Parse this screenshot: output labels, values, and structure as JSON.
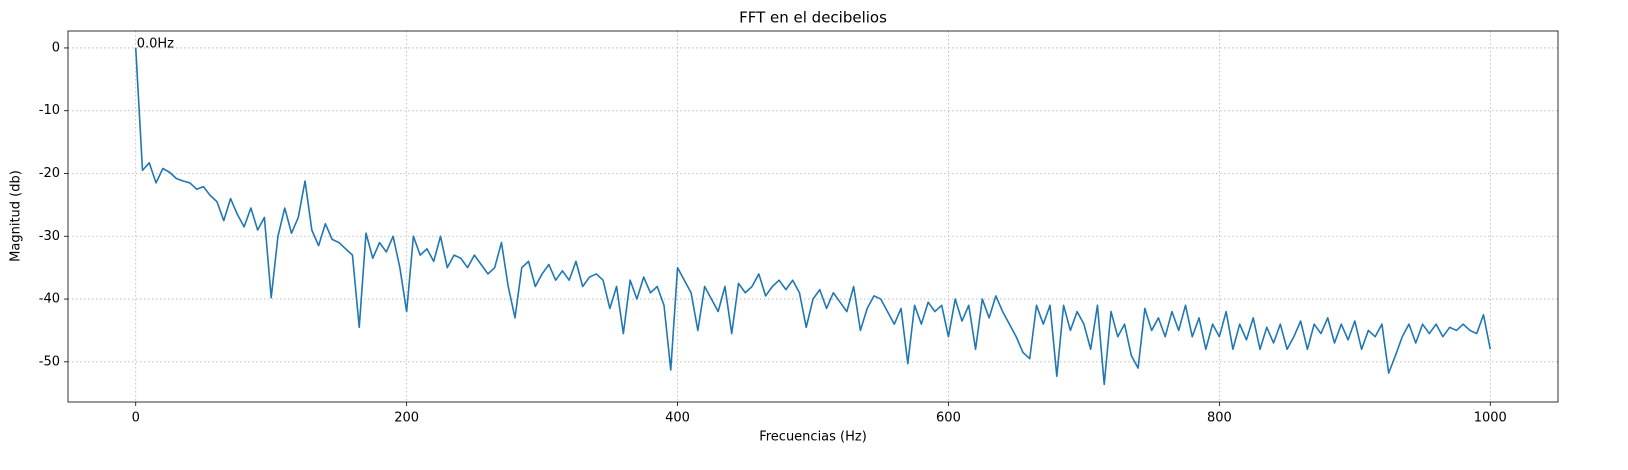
{
  "chart_data": {
    "type": "line",
    "title": "FFT en el decibelios",
    "x_label": "Frecuencias (Hz)",
    "y_label": "Magnitud (db)",
    "x": [
      0,
      5,
      10,
      15,
      20,
      25,
      30,
      35,
      40,
      45,
      50,
      55,
      60,
      65,
      70,
      75,
      80,
      85,
      90,
      95,
      100,
      105,
      110,
      115,
      120,
      125,
      130,
      135,
      140,
      145,
      150,
      155,
      160,
      165,
      170,
      175,
      180,
      185,
      190,
      195,
      200,
      205,
      210,
      215,
      220,
      225,
      230,
      235,
      240,
      245,
      250,
      255,
      260,
      265,
      270,
      275,
      280,
      285,
      290,
      295,
      300,
      305,
      310,
      315,
      320,
      325,
      330,
      335,
      340,
      345,
      350,
      355,
      360,
      365,
      370,
      375,
      380,
      385,
      390,
      395,
      400,
      405,
      410,
      415,
      420,
      425,
      430,
      435,
      440,
      445,
      450,
      455,
      460,
      465,
      470,
      475,
      480,
      485,
      490,
      495,
      500,
      505,
      510,
      515,
      520,
      525,
      530,
      535,
      540,
      545,
      550,
      555,
      560,
      565,
      570,
      575,
      580,
      585,
      590,
      595,
      600,
      605,
      610,
      615,
      620,
      625,
      630,
      635,
      640,
      645,
      650,
      655,
      660,
      665,
      670,
      675,
      680,
      685,
      690,
      695,
      700,
      705,
      710,
      715,
      720,
      725,
      730,
      735,
      740,
      745,
      750,
      755,
      760,
      765,
      770,
      775,
      780,
      785,
      790,
      795,
      800,
      805,
      810,
      815,
      820,
      825,
      830,
      835,
      840,
      845,
      850,
      855,
      860,
      865,
      870,
      875,
      880,
      885,
      890,
      895,
      900,
      905,
      910,
      915,
      920,
      925,
      930,
      935,
      940,
      945,
      950,
      955,
      960,
      965,
      970,
      975,
      980,
      985,
      990,
      995,
      1000
    ],
    "values": [
      0,
      -19.5,
      -18.3,
      -21.5,
      -19.2,
      -19.8,
      -20.8,
      -21.2,
      -21.5,
      -22.5,
      -22.1,
      -23.5,
      -24.5,
      -27.5,
      -24,
      -26.5,
      -28.5,
      -25.5,
      -29,
      -27,
      -39.8,
      -30,
      -25.5,
      -29.5,
      -27,
      -21.2,
      -29,
      -31.5,
      -28,
      -30.5,
      -31,
      -32,
      -33,
      -44.5,
      -29.5,
      -33.5,
      -31,
      -32.5,
      -30,
      -35,
      -42,
      -30,
      -33,
      -32,
      -34,
      -30,
      -35,
      -33,
      -33.5,
      -35,
      -33,
      -34.5,
      -36,
      -35,
      -31,
      -38,
      -43,
      -35,
      -34,
      -38,
      -36,
      -34.5,
      -37,
      -35.5,
      -37,
      -34,
      -38,
      -36.5,
      -36,
      -37,
      -41.5,
      -38,
      -45.5,
      -37,
      -40,
      -36.5,
      -39,
      -38,
      -41,
      -51.3,
      -35,
      -37,
      -39,
      -45,
      -38,
      -40,
      -42,
      -38,
      -45.5,
      -37.5,
      -39,
      -38,
      -36,
      -39.5,
      -38,
      -37,
      -38.5,
      -37,
      -39,
      -44.5,
      -40,
      -38.5,
      -41.5,
      -39,
      -40.5,
      -42,
      -38,
      -45,
      -41.5,
      -39.5,
      -40,
      -42,
      -44,
      -41.5,
      -50.3,
      -41,
      -44,
      -40.5,
      -42,
      -41,
      -46,
      -40,
      -43.5,
      -41,
      -48,
      -40,
      -43,
      -39.5,
      -42,
      -44,
      -46,
      -48.5,
      -49.5,
      -41,
      -44,
      -41,
      -52.3,
      -41,
      -45,
      -42,
      -44,
      -48,
      -41,
      -53.6,
      -42,
      -46,
      -44,
      -49,
      -51,
      -41.5,
      -45,
      -43,
      -46,
      -42,
      -45,
      -41,
      -46,
      -43,
      -48,
      -44,
      -46,
      -42,
      -48,
      -44,
      -46.5,
      -43,
      -48,
      -44.5,
      -47,
      -44,
      -48,
      -46,
      -43.5,
      -48,
      -44,
      -45.5,
      -43,
      -47,
      -44,
      -46.5,
      -43.5,
      -48,
      -45,
      -46,
      -44,
      -51.8,
      -49,
      -46,
      -44,
      -47,
      -44,
      -45.5,
      -44,
      -46,
      -44.5,
      -45,
      -44,
      -45,
      -45.5,
      -42.5,
      -48
    ],
    "color": "#1f77b4",
    "annotations": [
      {
        "text": "0.0Hz",
        "x": 0,
        "y": 0
      }
    ],
    "xlim": [
      -50,
      1050
    ],
    "xticks": [
      0,
      200,
      400,
      600,
      800,
      1000
    ],
    "ylim": [
      -56.4,
      2.7
    ],
    "yticks": [
      0,
      -10,
      -20,
      -30,
      -40,
      -50
    ],
    "grid": true
  }
}
